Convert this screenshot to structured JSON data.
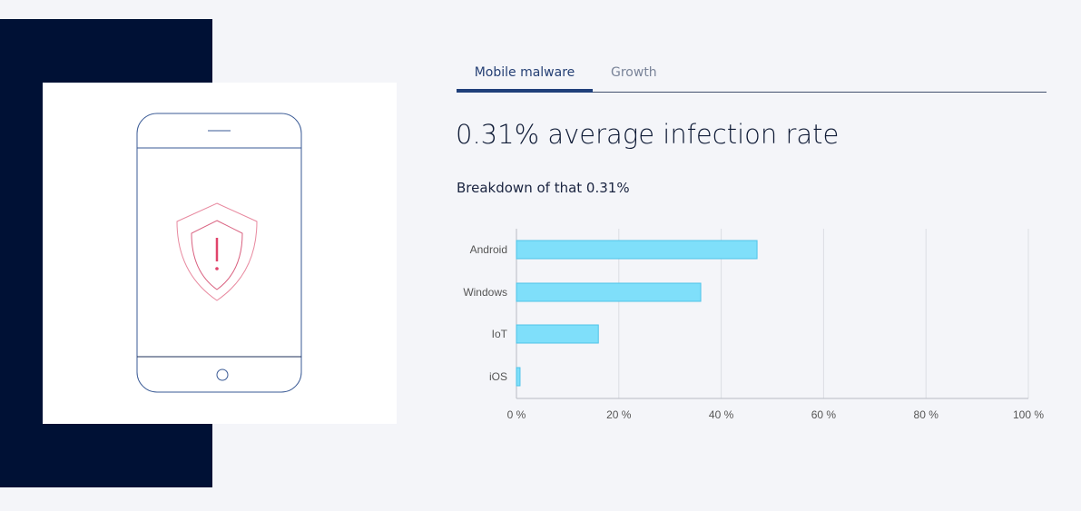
{
  "tabs": [
    {
      "label": "Mobile malware",
      "active": true
    },
    {
      "label": "Growth",
      "active": false
    }
  ],
  "headline": "0.31% average infection rate",
  "subheading": "Breakdown of that 0.31%",
  "colors": {
    "navy": "#001135",
    "bar_fill": "#7fdffa",
    "bar_stroke": "#4fc3e8",
    "alert": "#e0446b",
    "phone": "#3a5a95"
  },
  "chart_data": {
    "type": "bar",
    "orientation": "horizontal",
    "categories": [
      "Android",
      "Windows",
      "IoT",
      "iOS"
    ],
    "values": [
      47,
      36,
      16,
      0.7
    ],
    "xlim": [
      0,
      100
    ],
    "xticks": [
      0,
      20,
      40,
      60,
      80,
      100
    ],
    "xtick_labels": [
      "0 %",
      "20 %",
      "40 %",
      "60 %",
      "80 %",
      "100 %"
    ],
    "grid": true,
    "title": "",
    "xlabel": "",
    "ylabel": ""
  }
}
